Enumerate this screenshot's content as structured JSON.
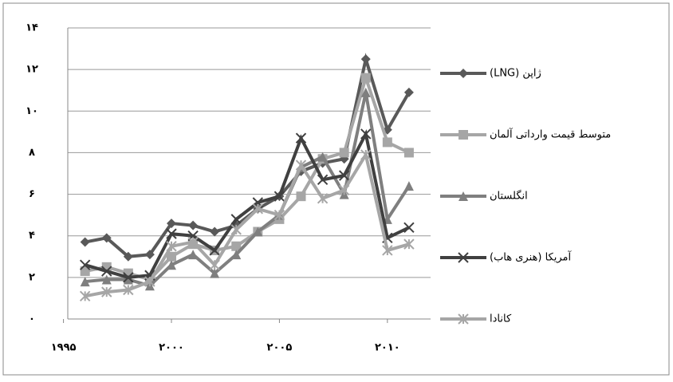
{
  "chart_data": {
    "type": "line",
    "x": [
      1996,
      1997,
      1998,
      1999,
      2000,
      2001,
      2002,
      2003,
      2004,
      2005,
      2006,
      2007,
      2008,
      2009,
      2010,
      2011
    ],
    "series": [
      {
        "name": "ژاپن (LNG)",
        "color": "#595959",
        "marker": "diamond",
        "values": [
          3.7,
          3.9,
          3.0,
          3.1,
          4.6,
          4.5,
          4.2,
          4.5,
          5.3,
          5.9,
          7.1,
          7.5,
          7.7,
          12.5,
          9.1,
          10.9
        ]
      },
      {
        "name": "متوسط قیمت وارداتی آلمان",
        "color": "#a6a6a6",
        "marker": "square",
        "values": [
          2.3,
          2.5,
          2.2,
          1.9,
          3.0,
          3.6,
          3.3,
          3.5,
          4.2,
          4.8,
          5.9,
          7.7,
          8.0,
          11.6,
          8.5,
          8.0
        ]
      },
      {
        "name": "انگلستان",
        "color": "#7f7f7f",
        "marker": "triangle",
        "values": [
          1.8,
          1.9,
          1.9,
          1.6,
          2.6,
          3.1,
          2.2,
          3.1,
          4.2,
          5.0,
          7.3,
          7.8,
          6.0,
          10.9,
          4.8,
          6.4
        ]
      },
      {
        "name": "آمریکا (هنری هاب)",
        "color": "#404040",
        "marker": "x",
        "values": [
          2.6,
          2.3,
          2.0,
          2.1,
          4.1,
          4.0,
          3.3,
          4.8,
          5.6,
          5.9,
          8.7,
          6.7,
          6.9,
          8.9,
          3.9,
          4.4
        ]
      },
      {
        "name": "کانادا",
        "color": "#a6a6a6",
        "marker": "star",
        "values": [
          1.1,
          1.3,
          1.4,
          1.8,
          3.5,
          3.7,
          2.6,
          4.3,
          5.3,
          5.0,
          7.4,
          5.8,
          6.2,
          7.9,
          3.3,
          3.6
        ]
      }
    ],
    "xlim": [
      1995.2,
      2012.0
    ],
    "xticks": [
      {
        "value": 1995,
        "label": "۱۹۹۵"
      },
      {
        "value": 2000,
        "label": "۲۰۰۰"
      },
      {
        "value": 2005,
        "label": "۲۰۰۵"
      },
      {
        "value": 2010,
        "label": "۲۰۱۰"
      }
    ],
    "ylim": [
      0,
      14
    ],
    "yticks": [
      {
        "value": 0,
        "label": "۰"
      },
      {
        "value": 2,
        "label": "۲"
      },
      {
        "value": 4,
        "label": "۴"
      },
      {
        "value": 6,
        "label": "۶"
      },
      {
        "value": 8,
        "label": "۸"
      },
      {
        "value": 10,
        "label": "۱۰"
      },
      {
        "value": 12,
        "label": "۱۲"
      },
      {
        "value": 14,
        "label": "۱۴"
      }
    ],
    "grid": true,
    "legend": "right"
  }
}
